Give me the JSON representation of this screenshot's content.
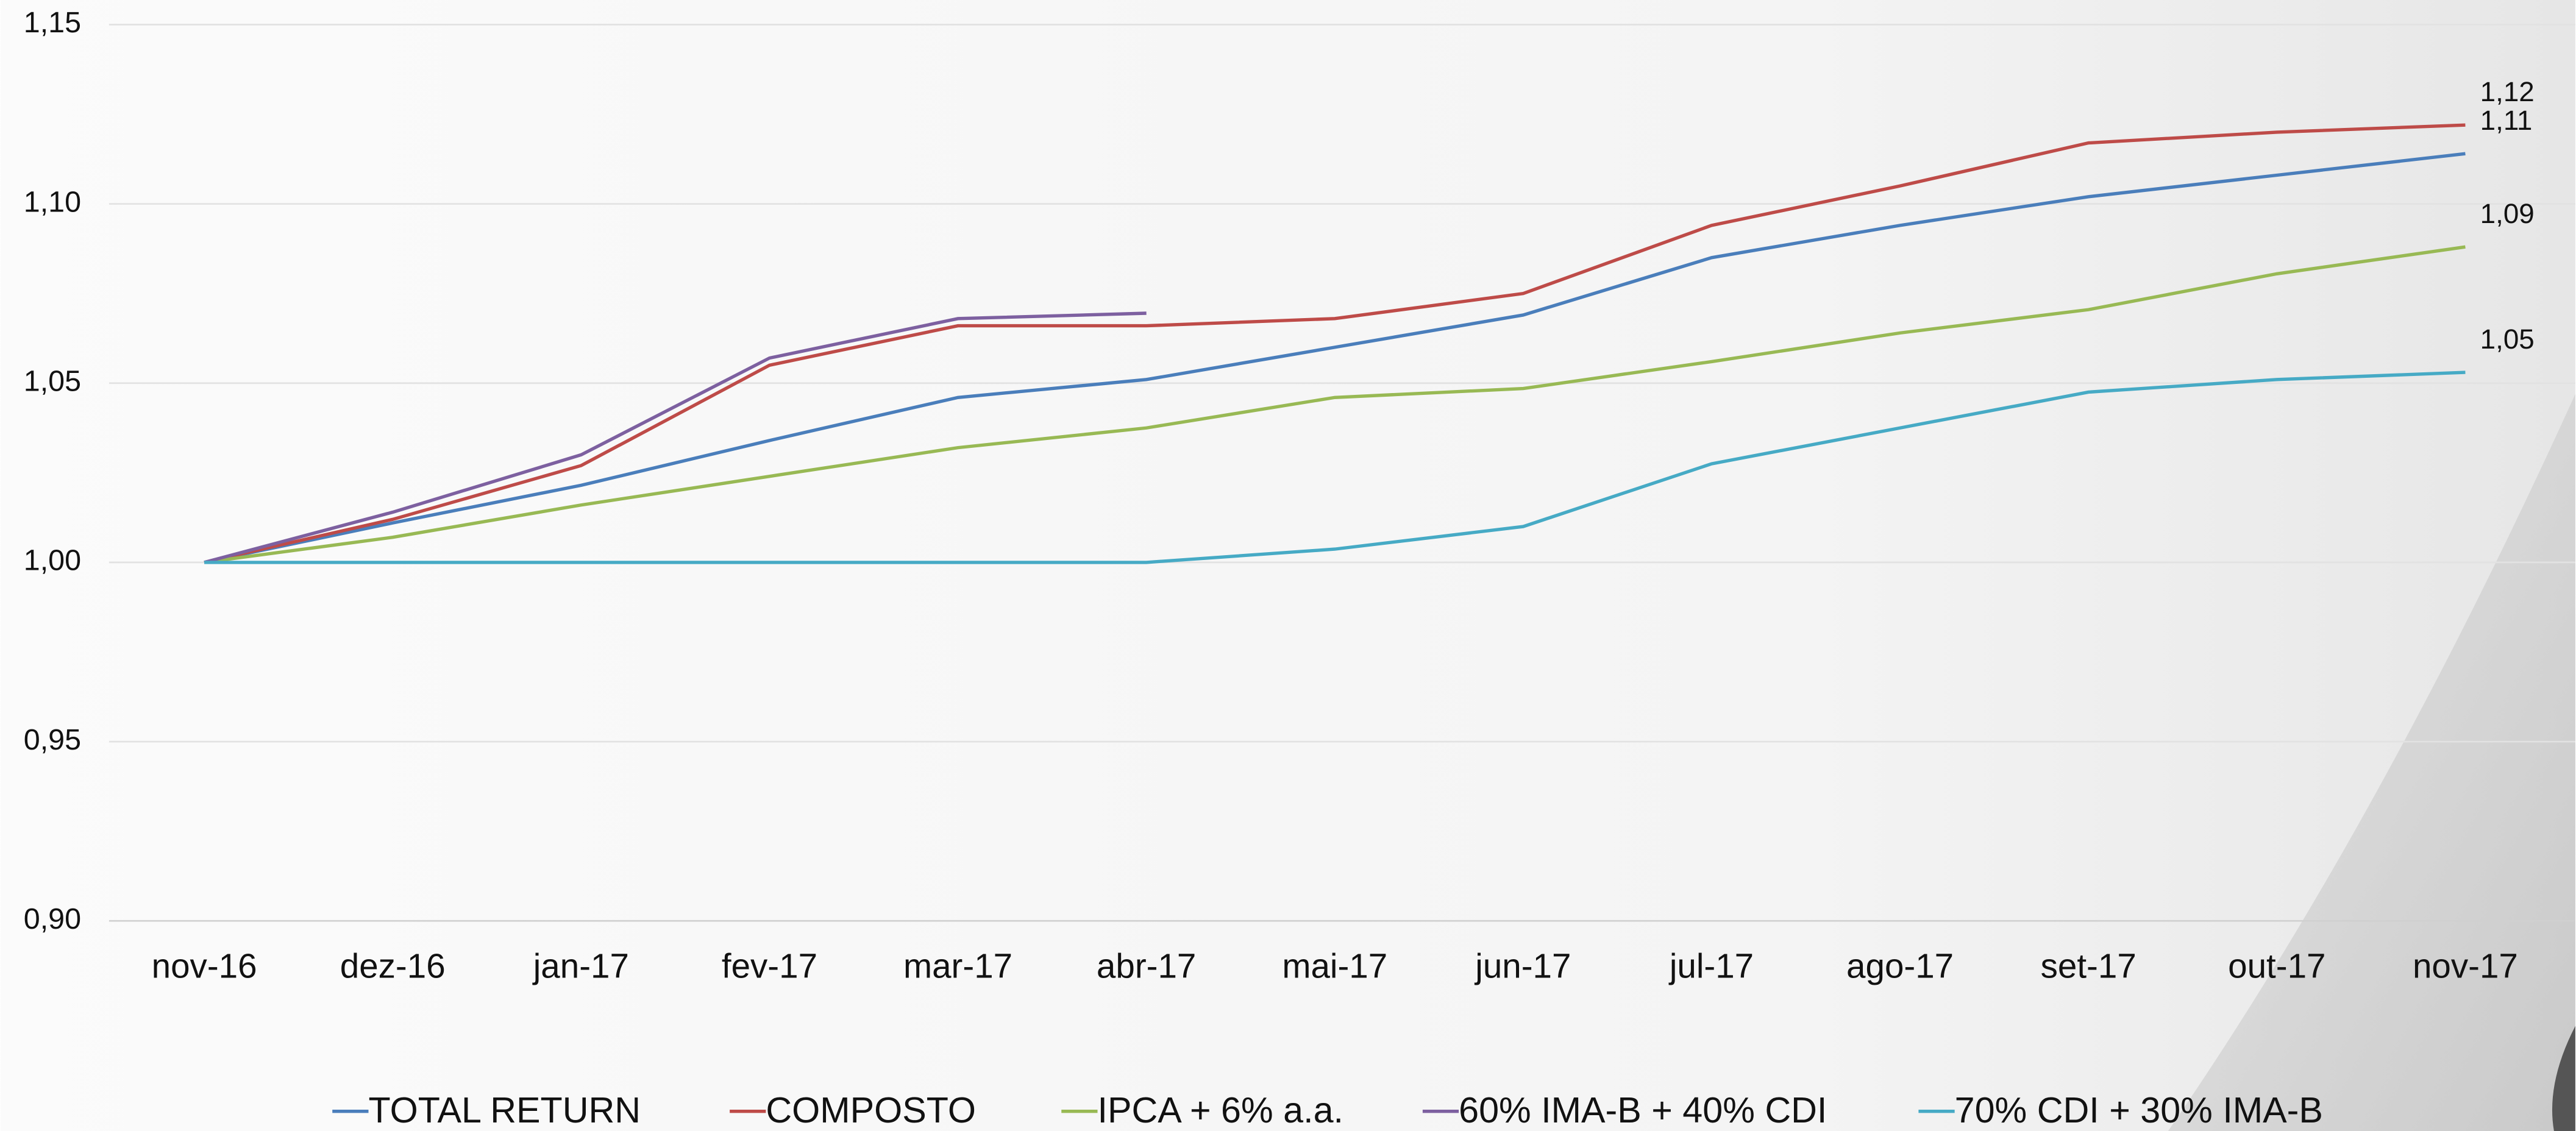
{
  "chart_data": {
    "type": "line",
    "categories": [
      "nov-16",
      "dez-16",
      "jan-17",
      "fev-17",
      "mar-17",
      "abr-17",
      "mai-17",
      "jun-17",
      "jul-17",
      "ago-17",
      "set-17",
      "out-17",
      "nov-17"
    ],
    "ylim": [
      0.9,
      1.15
    ],
    "yticks": [
      {
        "value": 0.9,
        "label": "0,90"
      },
      {
        "value": 0.95,
        "label": "0,95"
      },
      {
        "value": 1.0,
        "label": "1,00"
      },
      {
        "value": 1.05,
        "label": "1,05"
      },
      {
        "value": 1.1,
        "label": "1,10"
      },
      {
        "value": 1.15,
        "label": "1,15"
      }
    ],
    "grid": true,
    "legend": "bottom",
    "series": [
      {
        "name": "TOTAL RETURN",
        "color": "#4a7ebb",
        "values": [
          1.0,
          1.011,
          1.0215,
          1.034,
          1.046,
          1.051,
          1.06,
          1.069,
          1.085,
          1.094,
          1.102,
          1.108,
          1.114
        ],
        "value_labels": [
          null,
          null,
          null,
          null,
          null,
          null,
          null,
          null,
          null,
          null,
          null,
          null,
          "1,11"
        ]
      },
      {
        "name": "COMPOSTO",
        "color": "#be4b48",
        "values": [
          1.0,
          1.012,
          1.027,
          1.055,
          1.066,
          1.066,
          1.068,
          1.075,
          1.094,
          1.105,
          1.117,
          1.12,
          1.122
        ],
        "value_labels": [
          null,
          null,
          null,
          null,
          null,
          null,
          null,
          null,
          null,
          null,
          null,
          null,
          "1,12"
        ]
      },
      {
        "name": "IPCA + 6% a.a.",
        "color": "#98b954",
        "values": [
          1.0,
          1.007,
          1.016,
          1.024,
          1.032,
          1.0375,
          1.046,
          1.0485,
          1.056,
          1.064,
          1.0705,
          1.0805,
          1.088
        ],
        "value_labels": [
          null,
          null,
          null,
          null,
          null,
          null,
          null,
          null,
          null,
          null,
          null,
          null,
          "1,09"
        ]
      },
      {
        "name": "60% IMA-B + 40% CDI",
        "color": "#7d60a0",
        "values": [
          1.0,
          1.014,
          1.03,
          1.057,
          1.068,
          1.0695,
          null,
          null,
          null,
          null,
          null,
          null,
          null
        ]
      },
      {
        "name": "70% CDI + 30% IMA-B",
        "color": "#46aac5",
        "values": [
          1.0,
          1.0,
          1.0,
          1.0,
          1.0,
          1.0,
          1.0037,
          1.01,
          1.0275,
          1.0375,
          1.0475,
          1.051,
          1.053
        ],
        "value_labels": [
          null,
          null,
          null,
          null,
          null,
          null,
          null,
          null,
          null,
          null,
          null,
          null,
          "1,05"
        ]
      }
    ]
  }
}
